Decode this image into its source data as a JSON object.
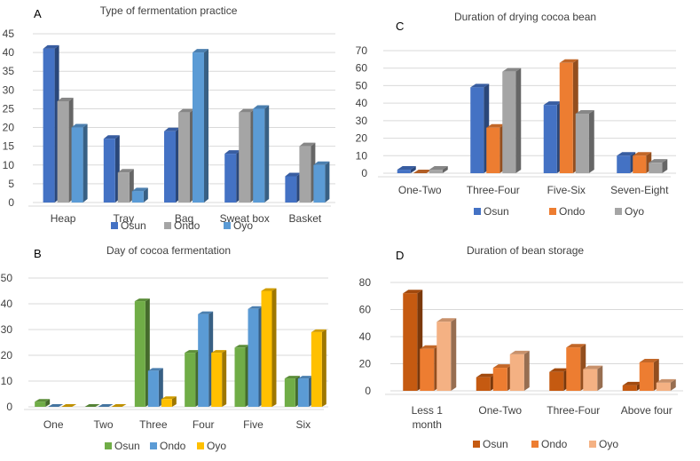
{
  "colors": {
    "A": [
      "#4472c4",
      "#a5a5a5",
      "#5b9bd5"
    ],
    "B": [
      "#70ad47",
      "#5b9bd5",
      "#ffc000"
    ],
    "C": [
      "#4472c4",
      "#ed7d31",
      "#a5a5a5"
    ],
    "D": [
      "#c55a11",
      "#ed7d31",
      "#f4b183"
    ]
  },
  "chart_data": [
    {
      "id": "A",
      "panel_label": "A",
      "type": "bar",
      "title": "Type of fermentation practice",
      "categories": [
        "Heap",
        "Tray",
        "Bag",
        "Sweat box",
        "Basket"
      ],
      "ylim": [
        0,
        45
      ],
      "yticks": [
        0,
        5,
        10,
        15,
        20,
        25,
        30,
        35,
        40,
        45
      ],
      "series": [
        {
          "name": "Osun",
          "values": [
            41,
            17,
            19,
            13,
            7
          ]
        },
        {
          "name": "Ondo",
          "values": [
            27,
            8,
            24,
            24,
            15
          ]
        },
        {
          "name": "Oyo",
          "values": [
            20,
            3,
            40,
            25,
            10
          ]
        }
      ]
    },
    {
      "id": "B",
      "panel_label": "B",
      "type": "bar",
      "title": "Day of cocoa fermentation",
      "categories": [
        "One",
        "Two",
        "Three",
        "Four",
        "Five",
        "Six"
      ],
      "ylim": [
        0,
        50
      ],
      "yticks": [
        0,
        10,
        20,
        30,
        40,
        50
      ],
      "series": [
        {
          "name": "Osun",
          "values": [
            2,
            0,
            41,
            21,
            23,
            11
          ]
        },
        {
          "name": "Ondo",
          "values": [
            0,
            0,
            14,
            36,
            38,
            11
          ]
        },
        {
          "name": "Oyo",
          "values": [
            0,
            0,
            3,
            21,
            45,
            29
          ]
        }
      ]
    },
    {
      "id": "C",
      "panel_label": "C",
      "type": "bar",
      "title": "Duration of drying cocoa bean",
      "categories": [
        "One-Two",
        "Three-Four",
        "Five-Six",
        "Seven-Eight"
      ],
      "ylim": [
        0,
        70
      ],
      "yticks": [
        0,
        10,
        20,
        30,
        40,
        50,
        60,
        70
      ],
      "series": [
        {
          "name": "Osun",
          "values": [
            2,
            49,
            39,
            10
          ]
        },
        {
          "name": "Ondo",
          "values": [
            0,
            26,
            63,
            10
          ]
        },
        {
          "name": "Oyo",
          "values": [
            2,
            58,
            34,
            6
          ]
        }
      ]
    },
    {
      "id": "D",
      "panel_label": "D",
      "type": "bar",
      "title": "Duration of bean storage",
      "categories": [
        "Less 1 month",
        "One-Two",
        "Three-Four",
        "Above four"
      ],
      "ylim": [
        0,
        80
      ],
      "yticks": [
        0,
        20,
        40,
        60,
        80
      ],
      "series": [
        {
          "name": "Osun",
          "values": [
            72,
            10,
            14,
            4
          ]
        },
        {
          "name": "Ondo",
          "values": [
            31,
            17,
            32,
            21
          ]
        },
        {
          "name": "Oyo",
          "values": [
            51,
            27,
            16,
            6
          ]
        }
      ]
    }
  ]
}
